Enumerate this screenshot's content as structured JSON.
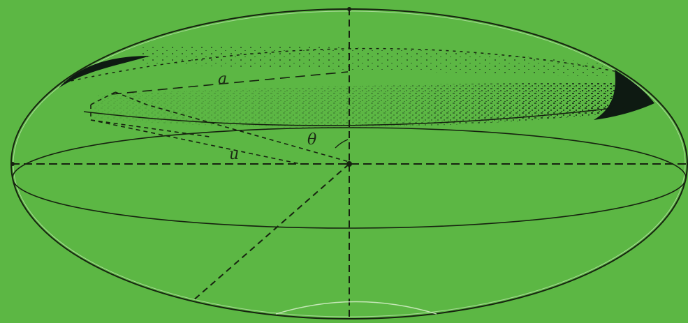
{
  "colors": {
    "background": "#5cb744",
    "line": "#16220f",
    "shadow": "#0e1a12",
    "faint": "#d8f0cc"
  },
  "labels": {
    "a": "a",
    "u": "u",
    "theta": "θ"
  }
}
